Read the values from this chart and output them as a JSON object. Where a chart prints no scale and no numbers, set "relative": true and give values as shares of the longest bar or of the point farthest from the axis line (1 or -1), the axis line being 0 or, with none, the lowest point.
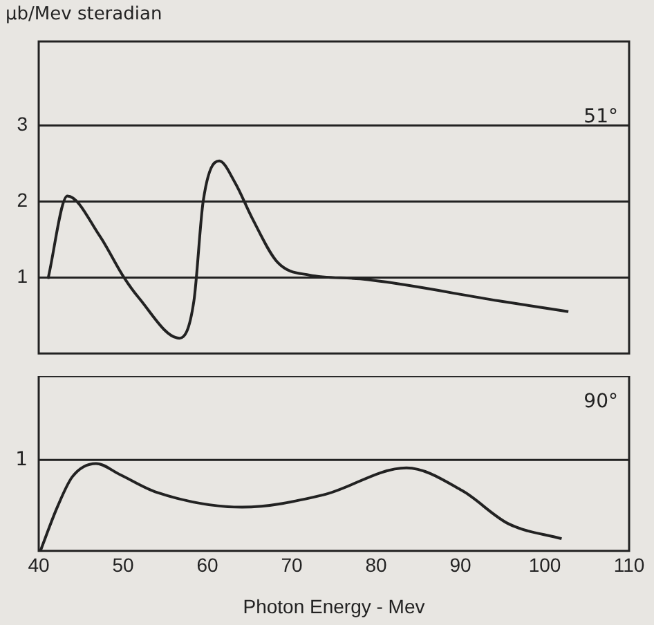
{
  "chart_data": [
    {
      "type": "line",
      "ylabel": "μb/Mev steradian",
      "annotations": [
        "51°"
      ],
      "xlim": [
        40,
        110
      ],
      "ylim": [
        0,
        4.1
      ],
      "yticks": [
        1,
        2,
        3
      ],
      "grid": "y",
      "tick_labels": "y",
      "marker": "none",
      "line_style": "solid",
      "legend": false,
      "series": [
        {
          "color": "#222222",
          "x": [
            41.1,
            43.4,
            47.2,
            50.1,
            51.8,
            56.7,
            58.4,
            59.5,
            61.4,
            63.3,
            65.3,
            68.3,
            72.1,
            78.1,
            94.6,
            102.8
          ],
          "values": [
            0.98,
            2.07,
            1.55,
            1.0,
            0.74,
            0.2,
            0.69,
            2.0,
            2.53,
            2.24,
            1.78,
            1.2,
            1.03,
            0.98,
            0.69,
            0.55
          ]
        }
      ]
    },
    {
      "type": "line",
      "xlabel": "Photon Energy - Mev",
      "annotations": [
        "90°"
      ],
      "xlim": [
        40,
        110
      ],
      "xticks": [
        40,
        50,
        60,
        70,
        80,
        90,
        100,
        110
      ],
      "relative": true,
      "ref_lines": [
        {
          "axis": "y",
          "value": 1.04,
          "label": "1"
        }
      ],
      "marker": "none",
      "line_style": "solid",
      "legend": false,
      "series": [
        {
          "color": "#222222",
          "x": [
            40.2,
            42.2,
            44.0,
            46.8,
            49.6,
            54.0,
            64.1,
            73.7,
            83.6,
            90.2,
            95.7,
            102
          ],
          "values": [
            0,
            0.5,
            0.85,
            1,
            0.875,
            0.67,
            0.5,
            0.64,
            0.95,
            0.69,
            0.31,
            0.14
          ]
        }
      ]
    }
  ]
}
